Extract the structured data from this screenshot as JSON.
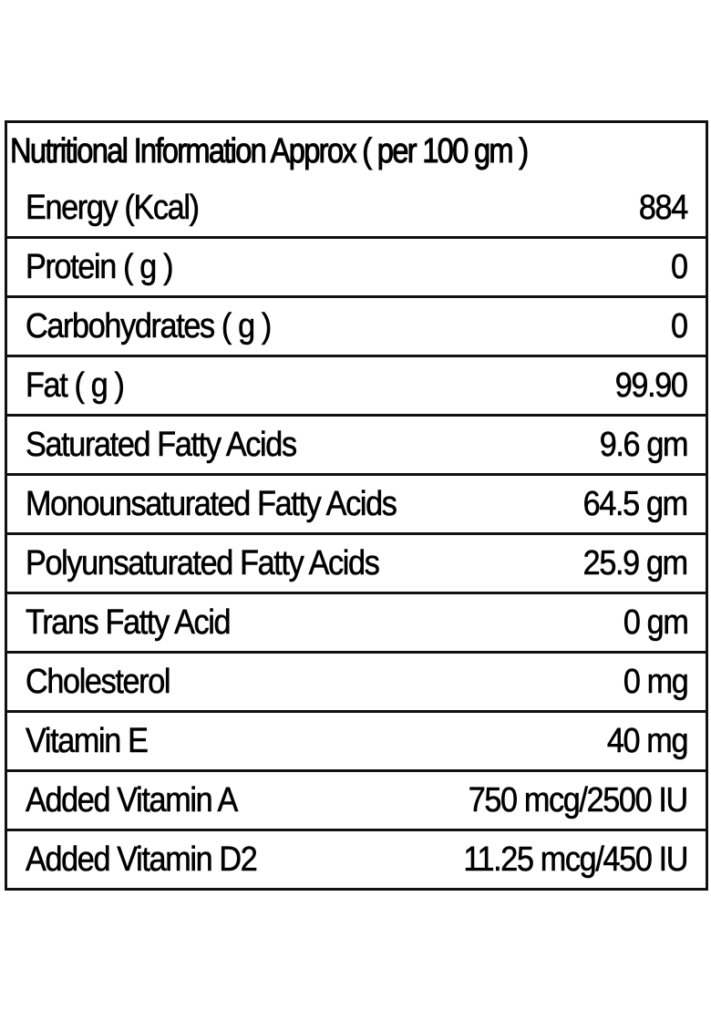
{
  "title": "Nutritional Information Approx ( per 100 gm )",
  "rows": [
    {
      "label": "Energy (Kcal)",
      "value": "884"
    },
    {
      "label": "Protein ( g )",
      "value": "0"
    },
    {
      "label": "Carbohydrates ( g )",
      "value": "0"
    },
    {
      "label": "Fat ( g )",
      "value": "99.90"
    },
    {
      "label": "Saturated Fatty Acids",
      "value": "9.6 gm"
    },
    {
      "label": "Monounsaturated Fatty Acids",
      "value": "64.5 gm"
    },
    {
      "label": "Polyunsaturated Fatty Acids",
      "value": "25.9 gm"
    },
    {
      "label": "Trans Fatty Acid",
      "value": "0 gm"
    },
    {
      "label": "Cholesterol",
      "value": "0 mg"
    },
    {
      "label": "Vitamin E",
      "value": "40 mg"
    },
    {
      "label": "Added Vitamin A",
      "value": "750 mcg/2500 IU"
    },
    {
      "label": "Added Vitamin D2",
      "value": "11.25 mcg/450 IU"
    }
  ]
}
